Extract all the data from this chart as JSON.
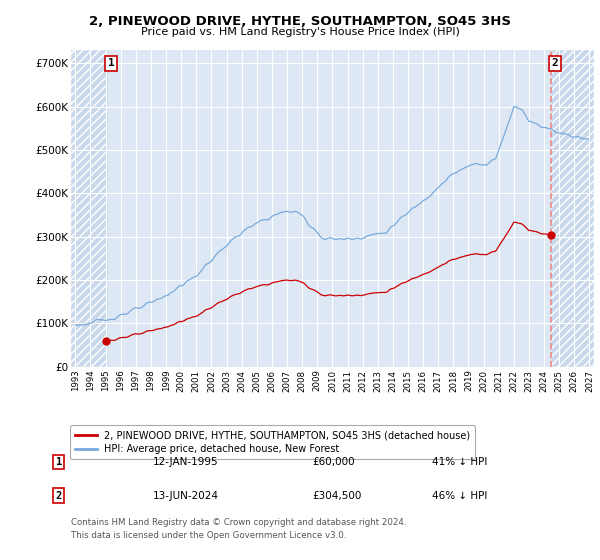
{
  "title": "2, PINEWOOD DRIVE, HYTHE, SOUTHAMPTON, SO45 3HS",
  "subtitle": "Price paid vs. HM Land Registry's House Price Index (HPI)",
  "legend_line1": "2, PINEWOOD DRIVE, HYTHE, SOUTHAMPTON, SO45 3HS (detached house)",
  "legend_line2": "HPI: Average price, detached house, New Forest",
  "footnote": "Contains HM Land Registry data © Crown copyright and database right 2024.\nThis data is licensed under the Open Government Licence v3.0.",
  "transaction1_date": "12-JAN-1995",
  "transaction1_price": 60000,
  "transaction1_pct": "41% ↓ HPI",
  "transaction2_date": "13-JUN-2024",
  "transaction2_price": 304500,
  "transaction2_pct": "46% ↓ HPI",
  "hpi_color": "#7aaadd",
  "sale_color": "#cc0000",
  "vline_color": "#ee8888",
  "background_main": "#dde8f4",
  "background_hatch": "#c8d8ea",
  "ylim": [
    0,
    730000
  ],
  "xlim_start": 1992.7,
  "xlim_end": 2027.3,
  "hatch_left_end": 1995.08,
  "hatch_right_start": 2024.46,
  "sale1_x": 1995.04,
  "sale1_y": 60000,
  "sale2_x": 2024.46,
  "sale2_y": 304500,
  "ratio1": 0.59,
  "ratio2": 0.54
}
